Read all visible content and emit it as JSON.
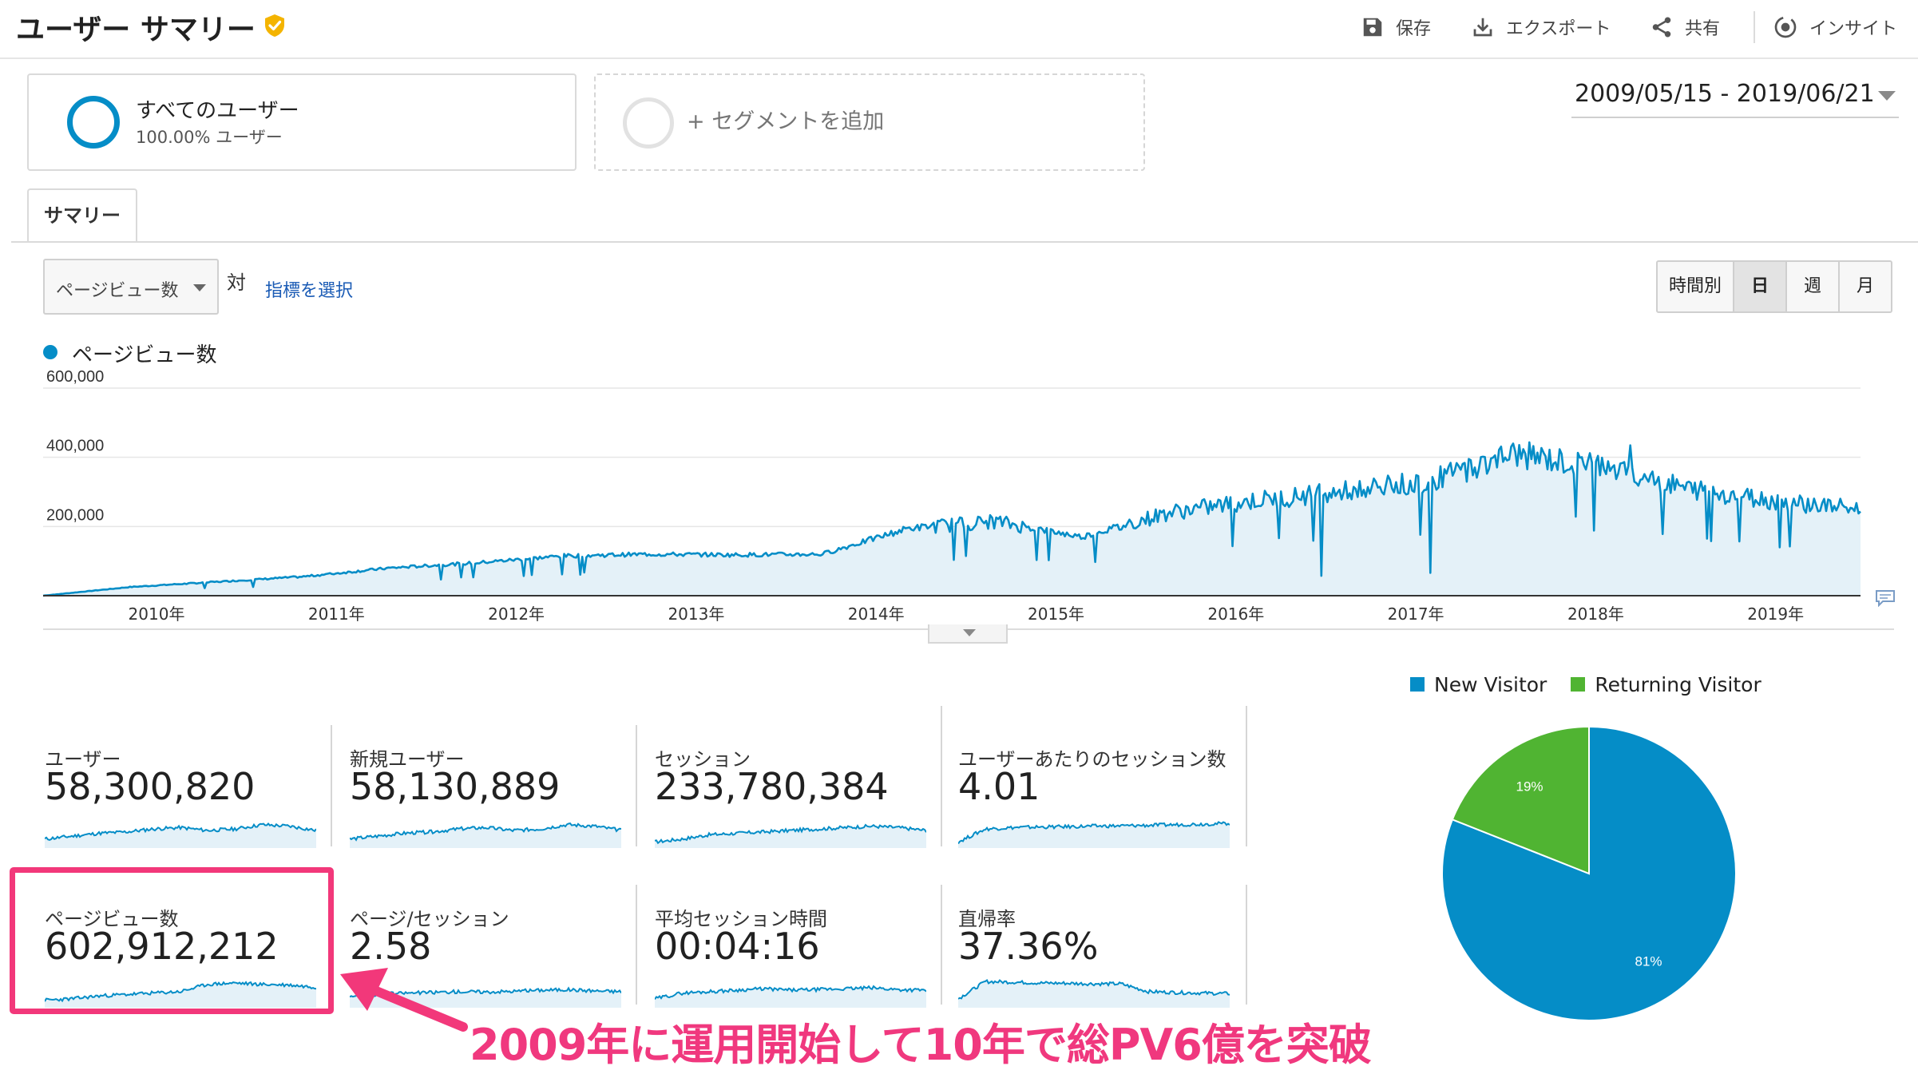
{
  "header": {
    "title": "ユーザー サマリー",
    "toolbar": {
      "save": "保存",
      "export": "エクスポート",
      "share": "共有",
      "insights": "インサイト"
    }
  },
  "segments": {
    "primary": {
      "name": "すべてのユーザー",
      "percent": "100.00% ユーザー"
    },
    "add_label": "+ セグメントを追加"
  },
  "date_range": "2009/05/15 - 2019/06/21",
  "tabs": [
    {
      "label": "サマリー",
      "active": true
    }
  ],
  "metric_selector": {
    "selected": "ページビュー数",
    "vs": "対",
    "select_link": "指標を選択"
  },
  "granularity": {
    "options": [
      "時間別",
      "日",
      "週",
      "月"
    ],
    "active": "日"
  },
  "chart_data": {
    "type": "line",
    "series": [
      {
        "name": "ページビュー数",
        "color": "#058dc7"
      }
    ],
    "x_tick_labels": [
      "2010年",
      "2011年",
      "2012年",
      "2013年",
      "2014年",
      "2015年",
      "2016年",
      "2017年",
      "2018年",
      "2019年"
    ],
    "y_tick_labels": [
      "600,000",
      "400,000",
      "200,000"
    ],
    "ylim": [
      0,
      600000
    ],
    "x": [
      "2009/05",
      "2010/01",
      "2010/07",
      "2011/01",
      "2011/07",
      "2012/01",
      "2012/07",
      "2013/01",
      "2013/07",
      "2014/01",
      "2014/07",
      "2015/01",
      "2015/07",
      "2016/01",
      "2016/07",
      "2017/01",
      "2017/07",
      "2017/10",
      "2018/01",
      "2018/07",
      "2019/01",
      "2019/06"
    ],
    "values": [
      0,
      25000,
      40000,
      55000,
      80000,
      95000,
      115000,
      120000,
      118000,
      120000,
      195000,
      215000,
      170000,
      240000,
      275000,
      300000,
      330000,
      410000,
      370000,
      310000,
      275000,
      250000
    ],
    "grid": true
  },
  "scorecards": [
    {
      "label": "ユーザー",
      "value": "58,300,820"
    },
    {
      "label": "新規ユーザー",
      "value": "58,130,889"
    },
    {
      "label": "セッション",
      "value": "233,780,384"
    },
    {
      "label": "ユーザーあたりのセッション数",
      "value": "4.01"
    },
    {
      "label": "ページビュー数",
      "value": "602,912,212"
    },
    {
      "label": "ページ/セッション",
      "value": "2.58"
    },
    {
      "label": "平均セッション時間",
      "value": "00:04:16"
    },
    {
      "label": "直帰率",
      "value": "37.36%"
    }
  ],
  "pie": {
    "type": "pie",
    "legend": [
      {
        "name": "New Visitor",
        "color": "#058dc7"
      },
      {
        "name": "Returning Visitor",
        "color": "#50b432"
      }
    ],
    "slices": [
      {
        "name": "New Visitor",
        "percent": 81,
        "label": "81%",
        "color": "#058dc7"
      },
      {
        "name": "Returning Visitor",
        "percent": 19,
        "label": "19%",
        "color": "#50b432"
      }
    ]
  },
  "annotation": {
    "caption": "2009年に運用開始して10年で総PV6億を突破",
    "color": "#f0387e"
  }
}
